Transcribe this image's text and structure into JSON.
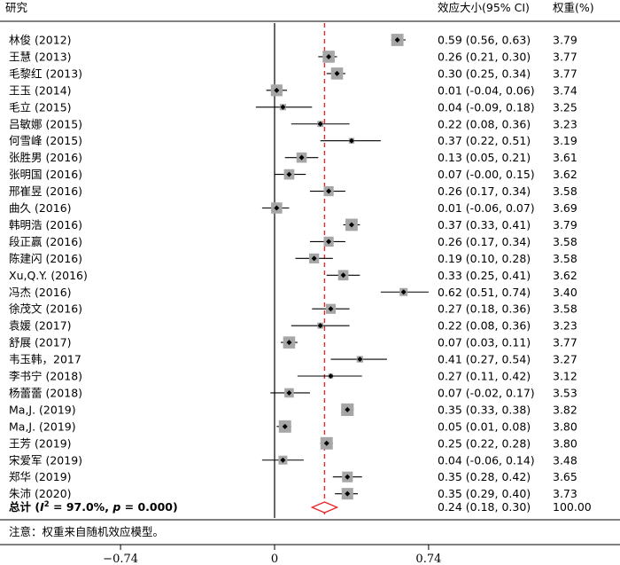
{
  "chart_data": {
    "type": "forest",
    "headers": {
      "study": "研究",
      "effect": "效应大小(95% CI)",
      "weight": "权重(%)"
    },
    "studies": [
      {
        "study": "林俊 (2012)",
        "es": 0.59,
        "lo": 0.56,
        "hi": 0.63,
        "ci_text": "0.59 (0.56, 0.63)",
        "weight": "3.79"
      },
      {
        "study": "王慧 (2013)",
        "es": 0.26,
        "lo": 0.21,
        "hi": 0.3,
        "ci_text": "0.26 (0.21, 0.30)",
        "weight": "3.77"
      },
      {
        "study": "毛黎红 (2013)",
        "es": 0.3,
        "lo": 0.25,
        "hi": 0.34,
        "ci_text": "0.30 (0.25, 0.34)",
        "weight": "3.77"
      },
      {
        "study": "王玉 (2014)",
        "es": 0.01,
        "lo": -0.04,
        "hi": 0.06,
        "ci_text": "0.01 (-0.04, 0.06)",
        "weight": "3.74"
      },
      {
        "study": "毛立 (2015)",
        "es": 0.04,
        "lo": -0.09,
        "hi": 0.18,
        "ci_text": "0.04 (-0.09, 0.18)",
        "weight": "3.25"
      },
      {
        "study": "吕敏娜 (2015)",
        "es": 0.22,
        "lo": 0.08,
        "hi": 0.36,
        "ci_text": "0.22 (0.08, 0.36)",
        "weight": "3.23"
      },
      {
        "study": "何雪峰 (2015)",
        "es": 0.37,
        "lo": 0.22,
        "hi": 0.51,
        "ci_text": "0.37 (0.22, 0.51)",
        "weight": "3.19"
      },
      {
        "study": "张胜男 (2016)",
        "es": 0.13,
        "lo": 0.05,
        "hi": 0.21,
        "ci_text": "0.13 (0.05, 0.21)",
        "weight": "3.61"
      },
      {
        "study": "张明国 (2016)",
        "es": 0.07,
        "lo": -0.0,
        "hi": 0.15,
        "ci_text": "0.07 (-0.00, 0.15)",
        "weight": "3.62"
      },
      {
        "study": "邢崔昱 (2016)",
        "es": 0.26,
        "lo": 0.17,
        "hi": 0.34,
        "ci_text": "0.26 (0.17, 0.34)",
        "weight": "3.58"
      },
      {
        "study": "曲久 (2016)",
        "es": 0.01,
        "lo": -0.06,
        "hi": 0.07,
        "ci_text": "0.01 (-0.06, 0.07)",
        "weight": "3.69"
      },
      {
        "study": "韩明浩 (2016)",
        "es": 0.37,
        "lo": 0.33,
        "hi": 0.41,
        "ci_text": "0.37 (0.33, 0.41)",
        "weight": "3.79"
      },
      {
        "study": "段正赢 (2016)",
        "es": 0.26,
        "lo": 0.17,
        "hi": 0.34,
        "ci_text": "0.26 (0.17, 0.34)",
        "weight": "3.58"
      },
      {
        "study": "陈建闪 (2016)",
        "es": 0.19,
        "lo": 0.1,
        "hi": 0.28,
        "ci_text": "0.19 (0.10, 0.28)",
        "weight": "3.58"
      },
      {
        "study": "Xu,Q.Y. (2016)",
        "es": 0.33,
        "lo": 0.25,
        "hi": 0.41,
        "ci_text": "0.33 (0.25, 0.41)",
        "weight": "3.62"
      },
      {
        "study": "冯杰 (2016)",
        "es": 0.62,
        "lo": 0.51,
        "hi": 0.74,
        "ci_text": "0.62 (0.51, 0.74)",
        "weight": "3.40"
      },
      {
        "study": "徐茂文 (2016)",
        "es": 0.27,
        "lo": 0.18,
        "hi": 0.36,
        "ci_text": "0.27 (0.18, 0.36)",
        "weight": "3.58"
      },
      {
        "study": "袁媛 (2017)",
        "es": 0.22,
        "lo": 0.08,
        "hi": 0.36,
        "ci_text": "0.22 (0.08, 0.36)",
        "weight": "3.23"
      },
      {
        "study": "舒展 (2017)",
        "es": 0.07,
        "lo": 0.03,
        "hi": 0.11,
        "ci_text": "0.07 (0.03, 0.11)",
        "weight": "3.77"
      },
      {
        "study": "韦玉韩，2017",
        "es": 0.41,
        "lo": 0.27,
        "hi": 0.54,
        "ci_text": "0.41 (0.27, 0.54)",
        "weight": "3.27"
      },
      {
        "study": "李书宁 (2018)",
        "es": 0.27,
        "lo": 0.11,
        "hi": 0.42,
        "ci_text": "0.27 (0.11, 0.42)",
        "weight": "3.12"
      },
      {
        "study": "杨蕾蕾 (2018)",
        "es": 0.07,
        "lo": -0.02,
        "hi": 0.17,
        "ci_text": "0.07 (-0.02, 0.17)",
        "weight": "3.53"
      },
      {
        "study": "Ma,J. (2019)",
        "es": 0.35,
        "lo": 0.33,
        "hi": 0.38,
        "ci_text": "0.35 (0.33, 0.38)",
        "weight": "3.82"
      },
      {
        "study": "Ma,J. (2019)",
        "es": 0.05,
        "lo": 0.01,
        "hi": 0.08,
        "ci_text": "0.05 (0.01, 0.08)",
        "weight": "3.80"
      },
      {
        "study": "王芳 (2019)",
        "es": 0.25,
        "lo": 0.22,
        "hi": 0.28,
        "ci_text": "0.25 (0.22, 0.28)",
        "weight": "3.80"
      },
      {
        "study": "宋爱军 (2019)",
        "es": 0.04,
        "lo": -0.06,
        "hi": 0.14,
        "ci_text": "0.04 (-0.06, 0.14)",
        "weight": "3.48"
      },
      {
        "study": "郑华 (2019)",
        "es": 0.35,
        "lo": 0.28,
        "hi": 0.42,
        "ci_text": "0.35 (0.28, 0.42)",
        "weight": "3.65"
      },
      {
        "study": "朱沛 (2020)",
        "es": 0.35,
        "lo": 0.29,
        "hi": 0.4,
        "ci_text": "0.35 (0.29, 0.40)",
        "weight": "3.73"
      }
    ],
    "overall": {
      "label_prefix": "总计 (",
      "label_i": "I",
      "label_sup": "2",
      "label_mid": " = 97.0%, ",
      "label_p": "p",
      "label_end": " = 0.000)",
      "es": 0.24,
      "lo": 0.18,
      "hi": 0.3,
      "ci_text": "0.24 (0.18, 0.30)",
      "weight": "100.00"
    },
    "note": "注意：权重来自随机效应模型。",
    "x_ticks": [
      {
        "value": -0.74,
        "label": "−0.74"
      },
      {
        "value": 0,
        "label": "0"
      },
      {
        "value": 0.74,
        "label": "0.74"
      }
    ],
    "xlim": [
      -0.74,
      0.74
    ],
    "null_line": 0,
    "colors": {
      "ci_line": "#000000",
      "weight_box": "#a6a6a6",
      "point": "#000000",
      "overall_diamond": "#e8262b",
      "pooled_line": "#e8262b"
    }
  }
}
